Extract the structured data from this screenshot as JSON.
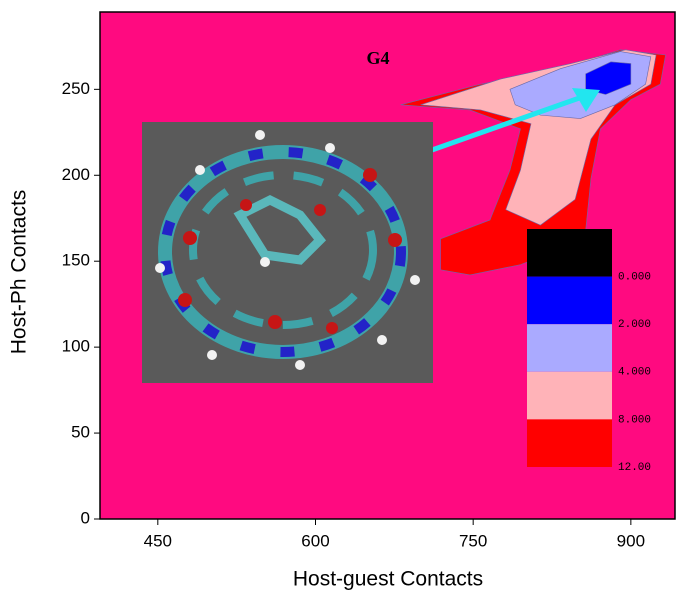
{
  "chart_data": {
    "type": "contour",
    "title": "G4",
    "x_label": "Host-guest Contacts",
    "y_label": "Host-Ph Contacts",
    "xlim": [
      395,
      942
    ],
    "ylim": [
      0,
      295
    ],
    "xticks": [
      450,
      600,
      750,
      900
    ],
    "yticks": [
      0,
      50,
      100,
      150,
      200,
      250
    ],
    "background": "#ff0a80",
    "contours": [
      {
        "color": "#ff0000",
        "x": [
          681,
          757,
          833,
          890,
          933,
          928,
          900,
          871,
          862,
          857,
          833,
          795,
          747,
          719,
          719,
          766,
          785,
          795,
          747
        ],
        "y": [
          241,
          253,
          262,
          273,
          270,
          253,
          244,
          227,
          198,
          168,
          157,
          148,
          142,
          145,
          163,
          174,
          203,
          227,
          238
        ]
      },
      {
        "color": "#ffb3b8",
        "x": [
          700,
          776,
          843,
          895,
          924,
          919,
          885,
          862,
          847,
          814,
          781,
          795,
          805,
          757
        ],
        "y": [
          241,
          256,
          265,
          273,
          270,
          253,
          241,
          221,
          186,
          171,
          180,
          203,
          230,
          238
        ]
      },
      {
        "color": "#aaaaff",
        "x": [
          785,
          833,
          890,
          919,
          914,
          885,
          852,
          814,
          790
        ],
        "y": [
          250,
          262,
          272,
          269,
          253,
          241,
          233,
          235,
          241
        ]
      },
      {
        "color": "#0000ff",
        "x": [
          857,
          881,
          900,
          900,
          876,
          857
        ],
        "y": [
          259,
          266,
          265,
          253,
          247,
          250
        ]
      }
    ],
    "colorbar": {
      "colors": [
        "#000000",
        "#0000ff",
        "#aaaaff",
        "#ffb3b8",
        "#ff0000"
      ],
      "ticks": [
        {
          "value": 0,
          "label": "0.000"
        },
        {
          "value": 2,
          "label": "2.000"
        },
        {
          "value": 4,
          "label": "4.000"
        },
        {
          "value": 8,
          "label": "8.000"
        },
        {
          "value": 12,
          "label": "12.00"
        }
      ]
    }
  }
}
